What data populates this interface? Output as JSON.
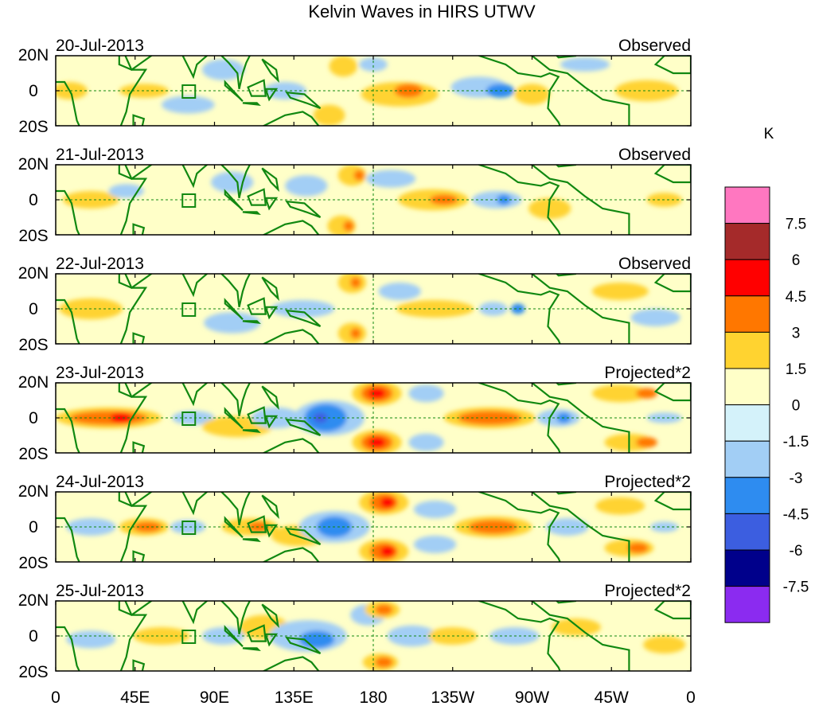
{
  "title": "Kelvin Waves in HIRS UTWV",
  "unit_label": "K",
  "lat_ticks": [
    "20N",
    "0",
    "20S"
  ],
  "lon_ticks": [
    "0",
    "45E",
    "90E",
    "135E",
    "180",
    "135W",
    "90W",
    "45W",
    "0"
  ],
  "panels": [
    {
      "date": "20-Jul-2013",
      "type": "Observed"
    },
    {
      "date": "21-Jul-2013",
      "type": "Observed"
    },
    {
      "date": "22-Jul-2013",
      "type": "Observed"
    },
    {
      "date": "23-Jul-2013",
      "type": "Projected*2"
    },
    {
      "date": "24-Jul-2013",
      "type": "Projected*2"
    },
    {
      "date": "25-Jul-2013",
      "type": "Projected*2"
    }
  ],
  "colorbar": {
    "labels": [
      "7.5",
      "6",
      "4.5",
      "3",
      "1.5",
      "0",
      "-1.5",
      "-3",
      "-4.5",
      "-6",
      "-7.5"
    ],
    "colors": [
      "#ff77c0",
      "#a52a2a",
      "#ff0000",
      "#ff7700",
      "#ffd330",
      "#ffffc8",
      "#d4f2fa",
      "#a2cef5",
      "#2e8cf0",
      "#3c5ee0",
      "#00008b",
      "#8b2bf0"
    ]
  },
  "colors": {
    "land": "#118811",
    "grid": "#118811",
    "frame": "#000000"
  }
}
